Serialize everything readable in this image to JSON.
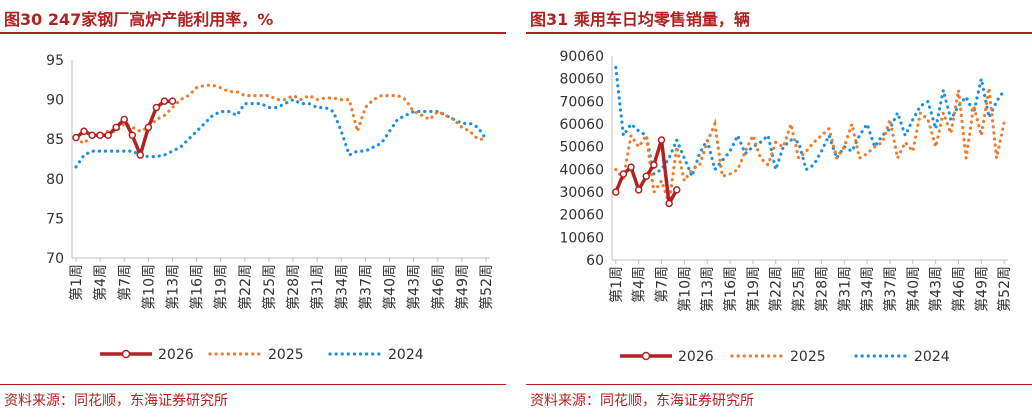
{
  "colors": {
    "s2026": "#b22222",
    "s2025": "#ed7d31",
    "s2024": "#1e90e0",
    "title": "#b22222"
  },
  "source_text": "资料来源：同花顺，东海证券研究所",
  "chart_data": [
    {
      "type": "line",
      "title": "图30  247家钢厂高炉产能利用率，%",
      "ylim": [
        70,
        95
      ],
      "yticks": [
        "70",
        "75",
        "80",
        "85",
        "90",
        "95"
      ],
      "xlabels": [
        "第1周",
        "第4周",
        "第7周",
        "第10周",
        "第13周",
        "第16周",
        "第19周",
        "第22周",
        "第25周",
        "第28周",
        "第31周",
        "第34周",
        "第37周",
        "第40周",
        "第43周",
        "第46周",
        "第49周",
        "第52周"
      ],
      "series": [
        {
          "name": "2026",
          "values": [
            85.2,
            86.0,
            85.5,
            85.5,
            85.5,
            86.5,
            87.5,
            85.5,
            83.0,
            86.5,
            89.0,
            89.8,
            89.8
          ]
        },
        {
          "name": "2025",
          "values": [
            85.0,
            84.5,
            85.5,
            85.5,
            86.0,
            86.0,
            87.0,
            86.5,
            86.0,
            86.5,
            87.5,
            88.0,
            89.0,
            90.0,
            90.5,
            91.5,
            91.8,
            91.8,
            91.5,
            91.0,
            91.0,
            90.5,
            90.5,
            90.5,
            90.5,
            90.0,
            90.0,
            90.5,
            90.0,
            90.5,
            90.0,
            90.2,
            90.2,
            90.0,
            90.0,
            86.0,
            89.0,
            90.0,
            90.5,
            90.5,
            90.5,
            90.0,
            88.5,
            88.0,
            87.5,
            88.5,
            88.0,
            87.5,
            86.5,
            86.0,
            85.0,
            85.0
          ]
        },
        {
          "name": "2024",
          "values": [
            81.5,
            83.0,
            83.5,
            83.5,
            83.5,
            83.5,
            83.5,
            83.5,
            83.0,
            82.8,
            82.8,
            83.0,
            83.5,
            84.0,
            85.0,
            86.0,
            87.0,
            88.0,
            88.5,
            88.5,
            88.0,
            89.5,
            89.5,
            89.5,
            89.0,
            89.0,
            89.5,
            90.0,
            89.5,
            89.5,
            89.0,
            89.0,
            88.5,
            86.0,
            83.0,
            83.5,
            83.5,
            84.0,
            84.5,
            86.0,
            87.5,
            88.0,
            88.5,
            88.5,
            88.5,
            88.5,
            88.0,
            87.5,
            87.0,
            87.0,
            86.5,
            85.0
          ]
        }
      ],
      "legend": [
        "2026",
        "2025",
        "2024"
      ]
    },
    {
      "type": "line",
      "title": "图31  乘用车日均零售销量，辆",
      "ylim": [
        60,
        90060
      ],
      "yticks": [
        "60",
        "10060",
        "20060",
        "30060",
        "40060",
        "50060",
        "60060",
        "70060",
        "80060",
        "90060"
      ],
      "xlabels": [
        "第1周",
        "第4周",
        "第7周",
        "第10周",
        "第13周",
        "第16周",
        "第19周",
        "第22周",
        "第25周",
        "第28周",
        "第31周",
        "第34周",
        "第37周",
        "第40周",
        "第43周",
        "第46周",
        "第49周",
        "第52周"
      ],
      "series": [
        {
          "name": "2026",
          "values": [
            30000,
            38000,
            41000,
            31000,
            37000,
            42000,
            53000,
            25000,
            31000
          ]
        },
        {
          "name": "2025",
          "values": [
            40000,
            36000,
            55000,
            50000,
            55000,
            30000,
            35000,
            25000,
            50000,
            35000,
            40000,
            42000,
            52000,
            60000,
            37000,
            38000,
            40000,
            48000,
            55000,
            45000,
            42000,
            52000,
            50000,
            60000,
            45000,
            48000,
            52000,
            55000,
            58000,
            45000,
            50000,
            60000,
            45000,
            47000,
            50000,
            52000,
            62000,
            45000,
            52000,
            48000,
            65000,
            62000,
            50000,
            65000,
            56000,
            75000,
            45000,
            68000,
            55000,
            76000,
            45000,
            61000
          ]
        },
        {
          "name": "2024",
          "values": [
            85000,
            55000,
            60000,
            57000,
            55000,
            38000,
            40000,
            45000,
            53000,
            45000,
            37000,
            47000,
            53000,
            40000,
            44000,
            48000,
            55000,
            47000,
            50000,
            52000,
            55000,
            40000,
            50000,
            53000,
            52000,
            40000,
            42000,
            48000,
            55000,
            45000,
            50000,
            48000,
            55000,
            60000,
            50000,
            55000,
            58000,
            65000,
            55000,
            62000,
            68000,
            70000,
            58000,
            75000,
            62000,
            68000,
            72000,
            65000,
            80000,
            63000,
            70000,
            75000
          ]
        }
      ],
      "legend": [
        "2026",
        "2025",
        "2024"
      ]
    }
  ]
}
